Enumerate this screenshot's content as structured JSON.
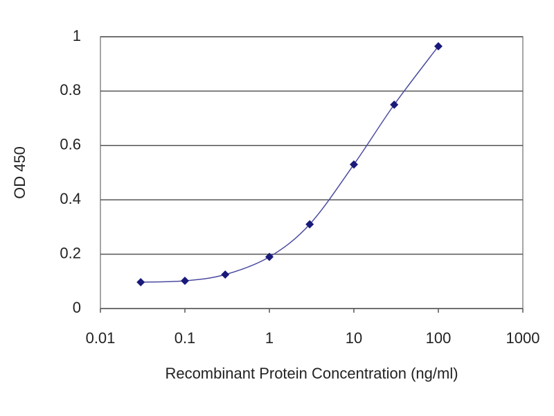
{
  "chart_data": {
    "type": "scatter",
    "xlabel": "Recombinant Protein Concentration (ng/ml)",
    "ylabel": "OD 450",
    "xscale": "log",
    "x": [
      0.03,
      0.1,
      0.3,
      1,
      3,
      10,
      30,
      100
    ],
    "series": [
      {
        "color": "#1a1a7a",
        "values": [
          0.097,
          0.102,
          0.125,
          0.19,
          0.31,
          0.53,
          0.75,
          0.965
        ]
      }
    ],
    "xlim": [
      0.01,
      1000
    ],
    "xticks": [
      0.01,
      0.1,
      1,
      10,
      100,
      1000
    ],
    "ylim": [
      0,
      1
    ],
    "yticks": [
      0,
      0.2,
      0.4,
      0.6,
      0.8,
      1
    ],
    "grid": true
  }
}
